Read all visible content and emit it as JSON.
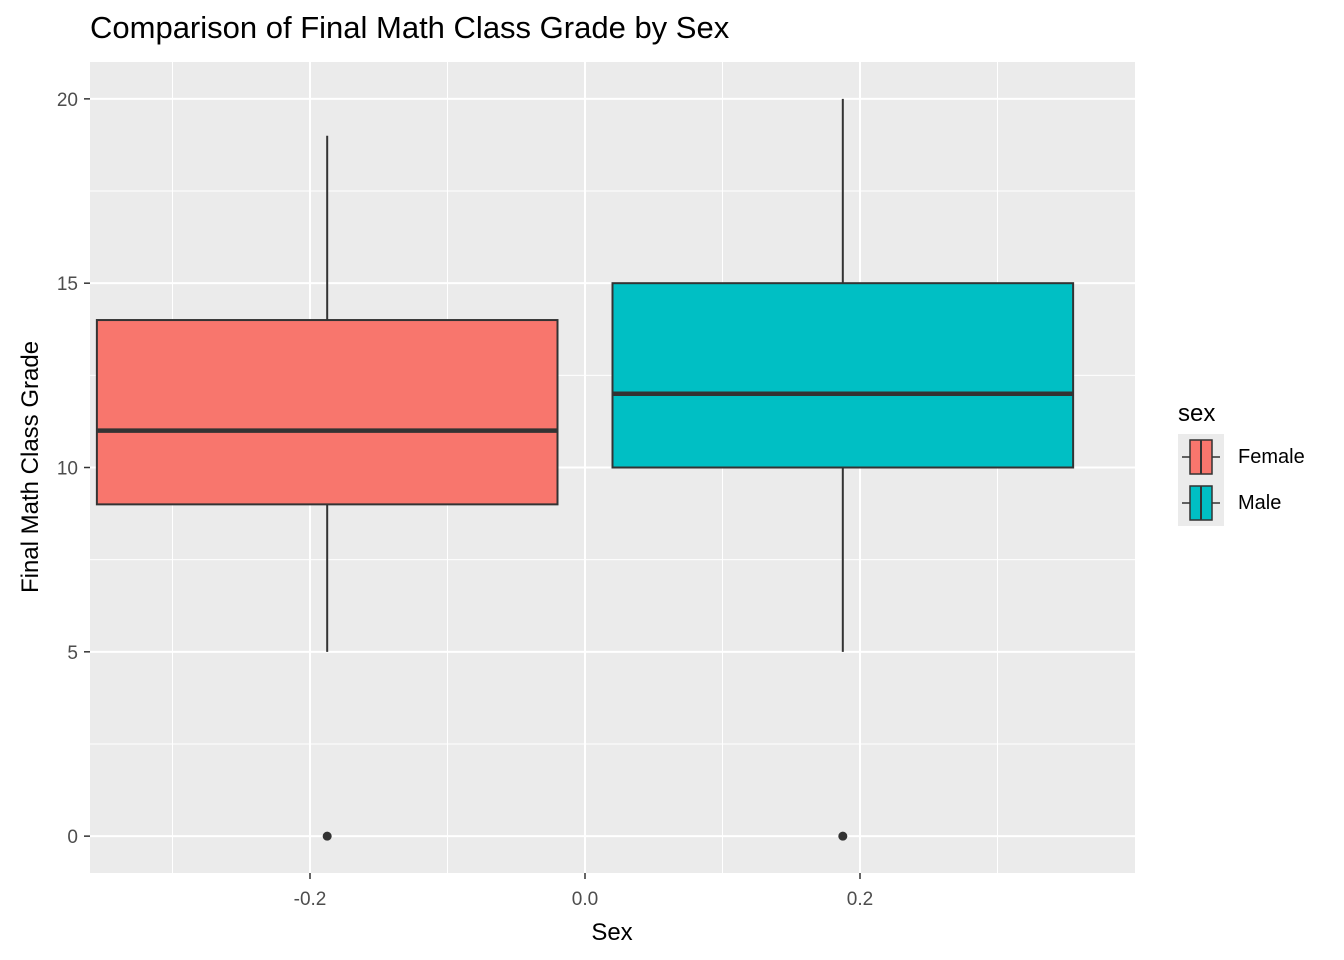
{
  "chart_data": {
    "type": "box",
    "title": "Comparison of Final Math Class Grade by Sex",
    "xlabel": "Sex",
    "ylabel": "Final Math Class Grade",
    "xlim": [
      -0.36,
      0.4
    ],
    "ylim": [
      -1,
      21
    ],
    "x_ticks": [
      -0.2,
      0.0,
      0.2
    ],
    "x_tick_labels": [
      "-0.2",
      "0.0",
      "0.2"
    ],
    "y_ticks": [
      0,
      5,
      10,
      15,
      20
    ],
    "y_tick_labels": [
      "0",
      "5",
      "10",
      "15",
      "20"
    ],
    "grid": true,
    "legend": {
      "title": "sex",
      "position": "right"
    },
    "series": [
      {
        "name": "Female",
        "color": "#F8766D",
        "x_center": -0.1875,
        "x_range": [
          -0.355,
          -0.02
        ],
        "whisker_low": 5,
        "q1": 9,
        "median": 11,
        "q3": 14,
        "whisker_high": 19,
        "outliers": [
          0
        ]
      },
      {
        "name": "Male",
        "color": "#00BFC4",
        "x_center": 0.1875,
        "x_range": [
          0.02,
          0.355
        ],
        "whisker_low": 5,
        "q1": 10,
        "median": 12,
        "q3": 15,
        "whisker_high": 20,
        "outliers": [
          0
        ]
      }
    ]
  }
}
